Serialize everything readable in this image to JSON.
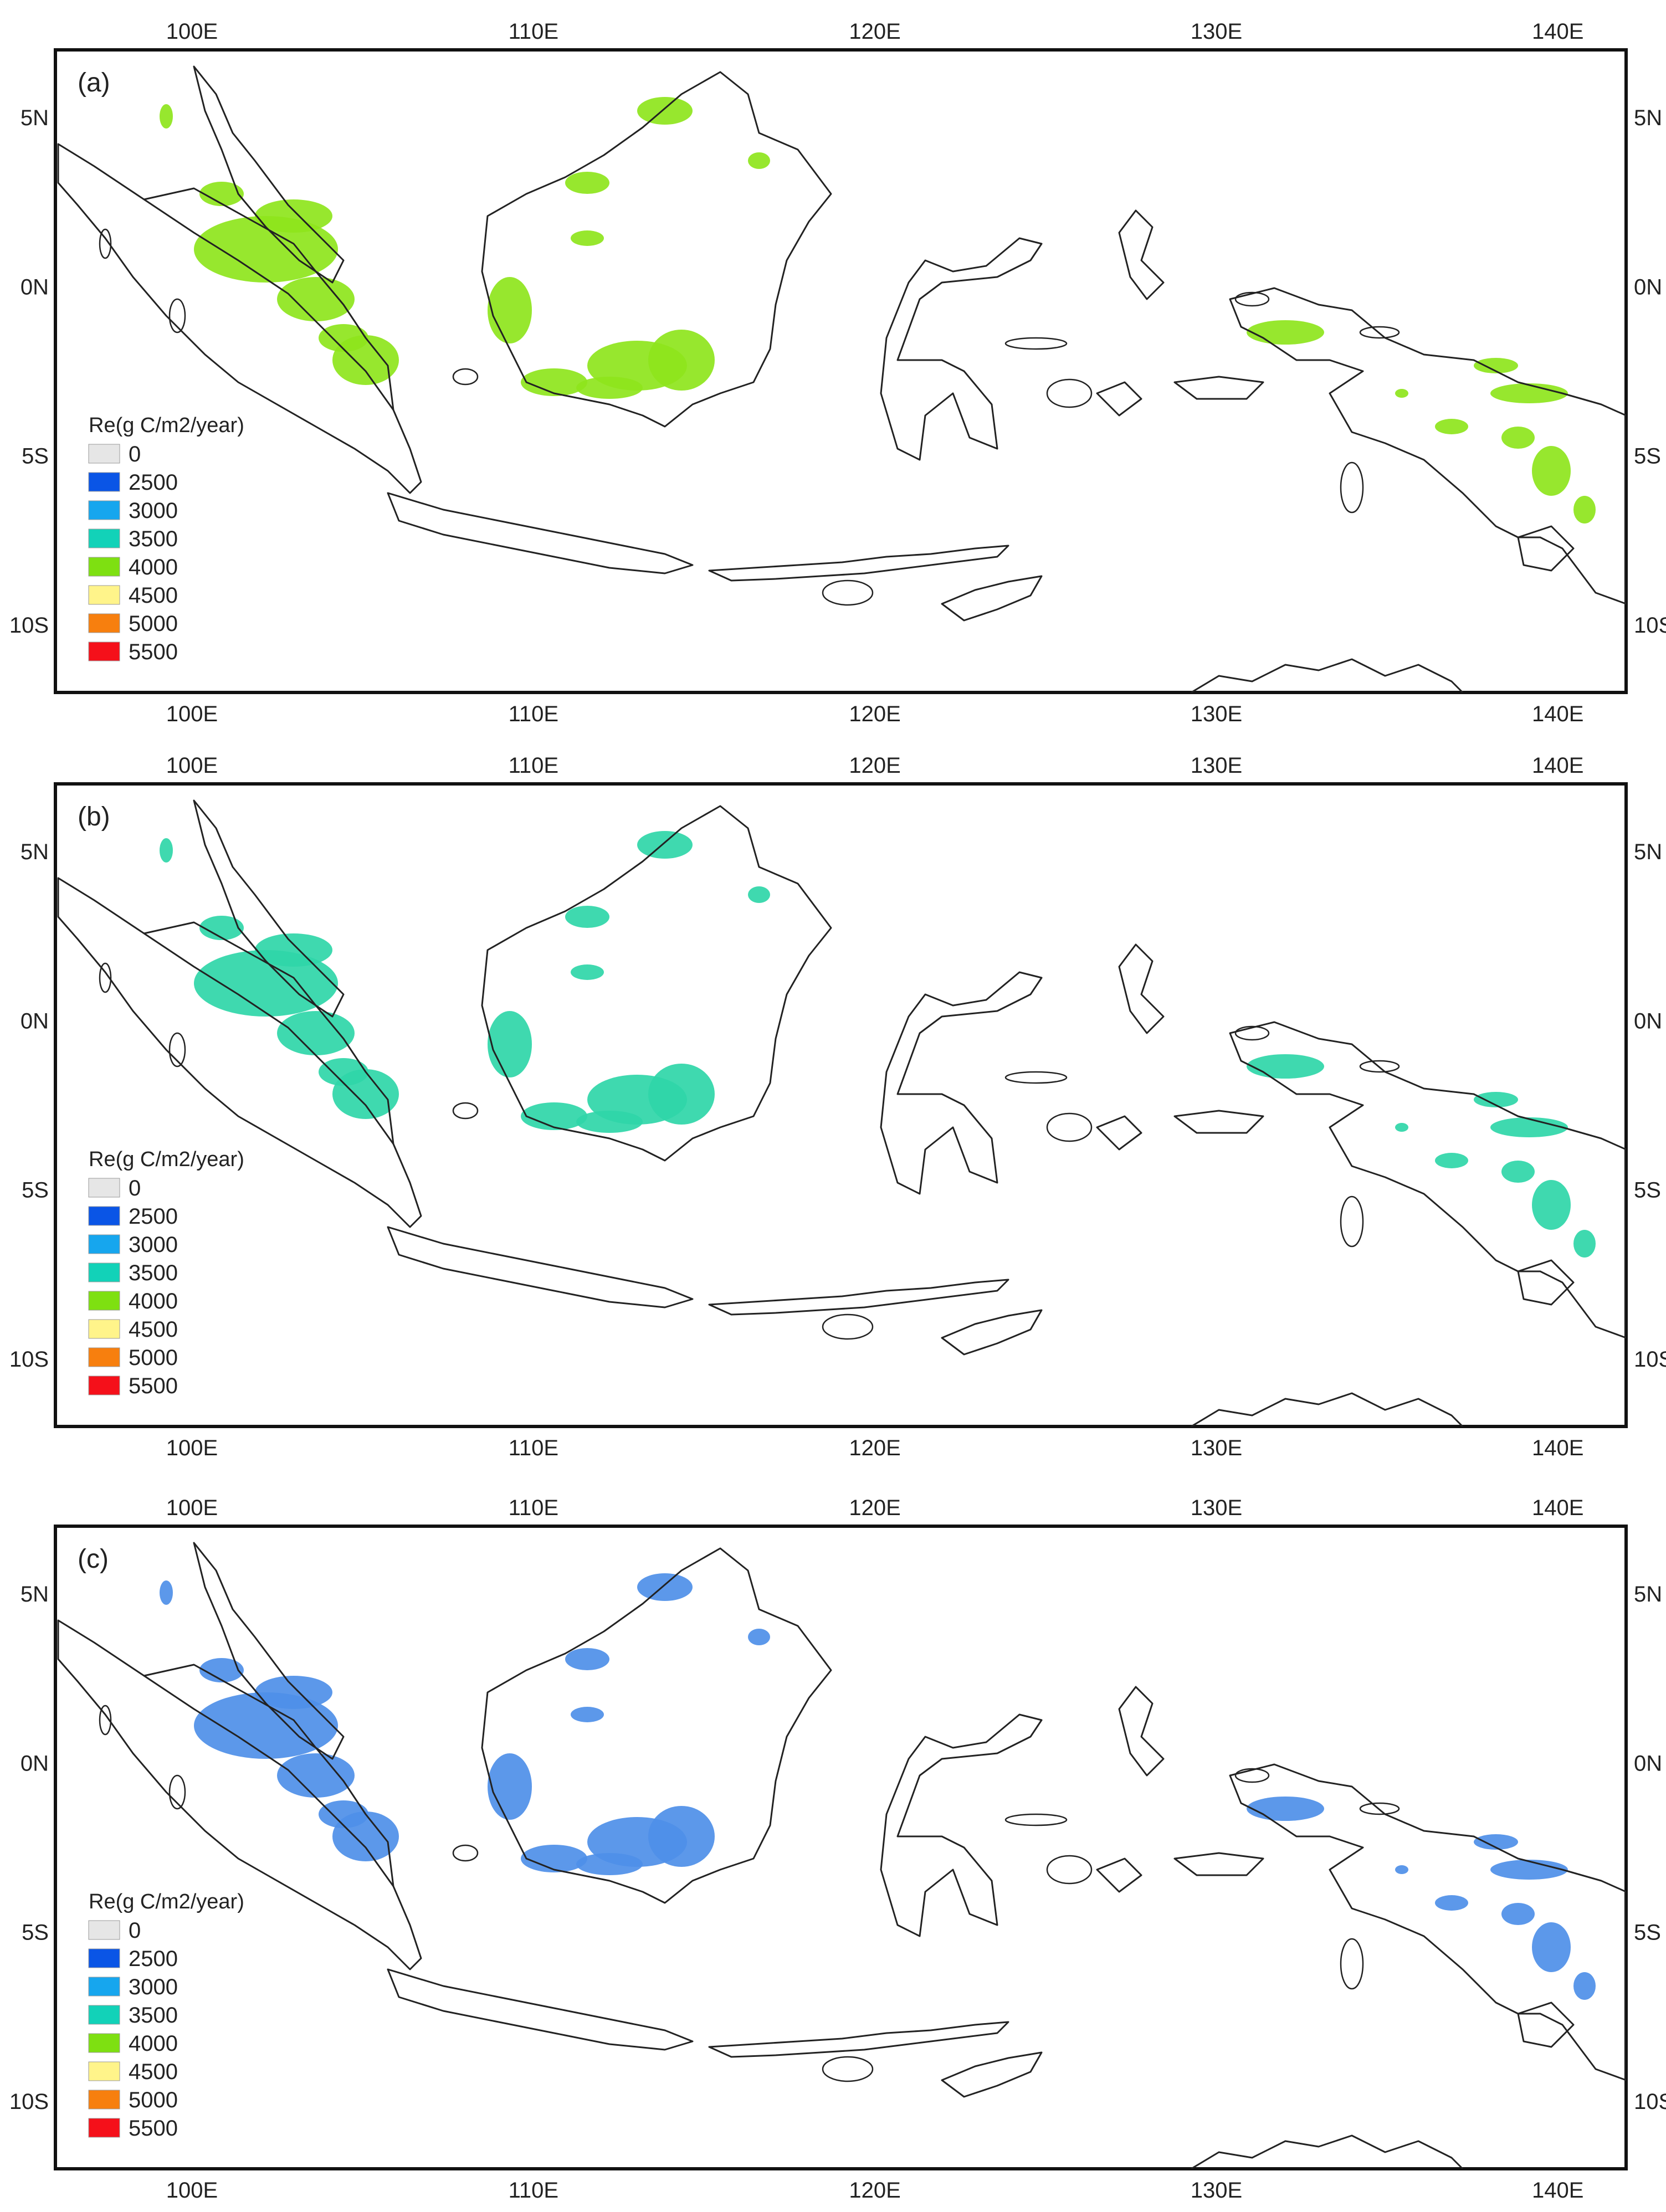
{
  "panels": [
    {
      "label": "(a)",
      "fill_class": "4000",
      "fill_color": "#8ee51c"
    },
    {
      "label": "(b)",
      "fill_class": "3500",
      "fill_color": "#2fd6a8"
    },
    {
      "label": "(c)",
      "fill_class": "2500",
      "fill_color": "#4e8fe8"
    }
  ],
  "axes": {
    "lon_ticks": [
      "100E",
      "110E",
      "120E",
      "130E",
      "140E"
    ],
    "lat_ticks": [
      "5N",
      "0N",
      "5S",
      "10S"
    ],
    "lon_values": [
      100,
      110,
      120,
      130,
      140
    ],
    "lat_values": [
      5,
      0,
      -5,
      -10
    ],
    "lon_range": [
      96,
      142
    ],
    "lat_range": [
      -12,
      7
    ]
  },
  "legend": {
    "title": "Re(g C/m2/year)",
    "classes": [
      {
        "label": "0",
        "color": "#e6e6e6"
      },
      {
        "label": "2500",
        "color": "#0a55e6"
      },
      {
        "label": "3000",
        "color": "#16a6ee"
      },
      {
        "label": "3500",
        "color": "#12d2b8"
      },
      {
        "label": "4000",
        "color": "#7ee011"
      },
      {
        "label": "4500",
        "color": "#fff48a"
      },
      {
        "label": "5000",
        "color": "#f77f0e"
      },
      {
        "label": "5500",
        "color": "#f5101a"
      }
    ]
  }
}
